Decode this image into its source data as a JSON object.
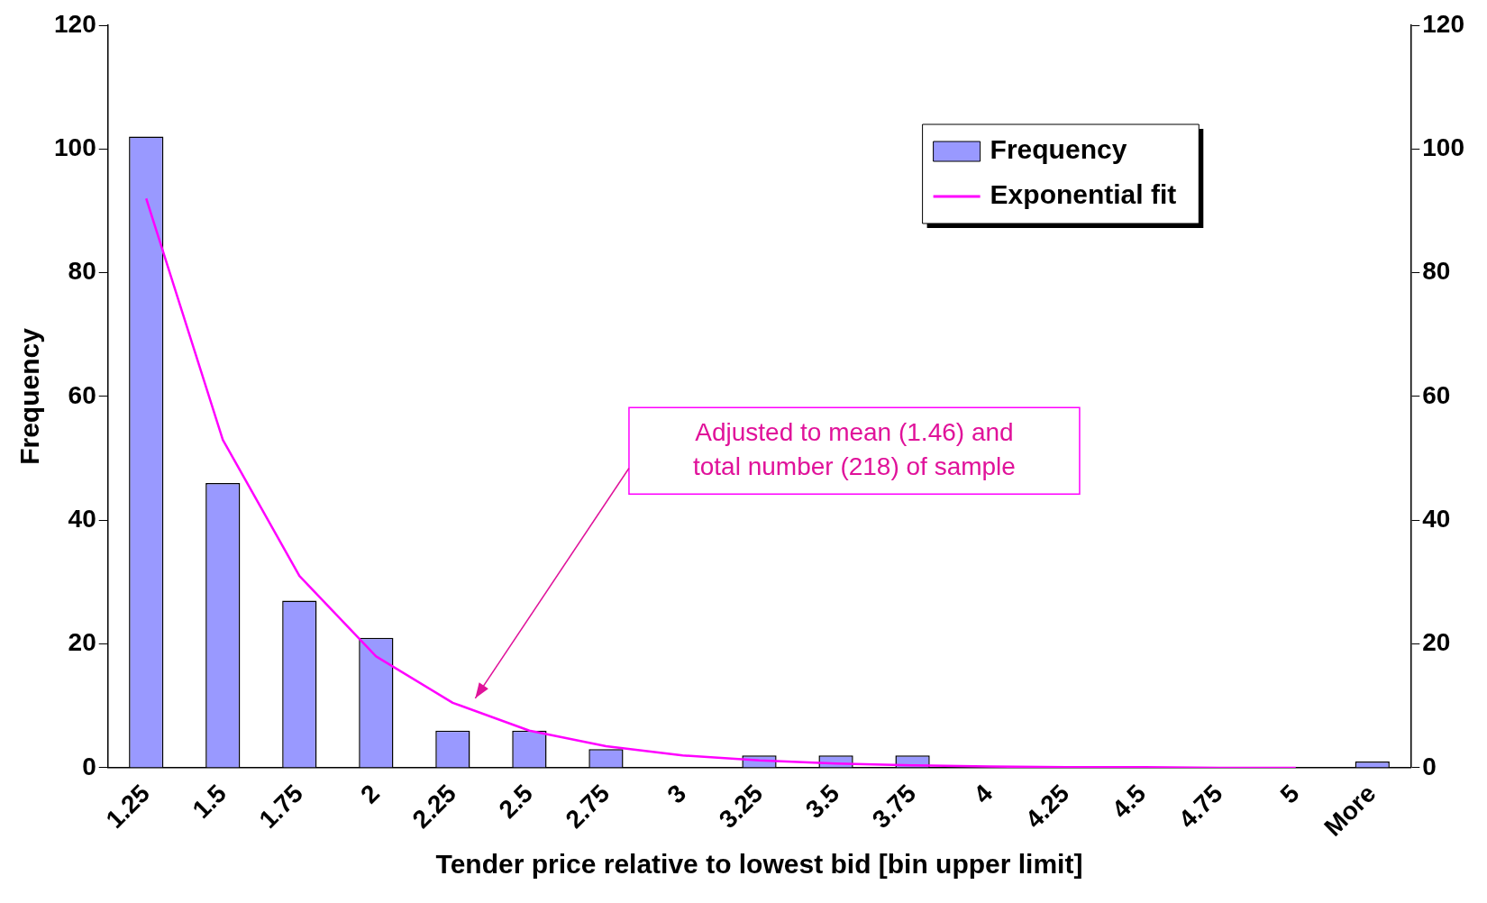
{
  "chart_data": {
    "type": "bar",
    "xlabel": "Tender price relative to lowest bid [bin upper limit]",
    "ylabel": "Frequency",
    "categories": [
      "1.25",
      "1.5",
      "1.75",
      "2",
      "2.25",
      "2.5",
      "2.75",
      "3",
      "3.25",
      "3.5",
      "3.75",
      "4",
      "4.25",
      "4.5",
      "4.75",
      "5",
      "More"
    ],
    "series": [
      {
        "name": "Frequency",
        "color": "#9999ff",
        "values": [
          102,
          46,
          27,
          21,
          6,
          6,
          3,
          0,
          2,
          2,
          2,
          0,
          0,
          0,
          0,
          0,
          1
        ]
      },
      {
        "name": "Exponential fit",
        "type": "line",
        "color": "#ff00ff",
        "values": [
          92,
          53,
          31,
          18,
          10.5,
          6,
          3.5,
          2,
          1.2,
          0.7,
          0.4,
          0.2,
          0.1,
          0.1,
          0,
          0,
          null
        ]
      }
    ],
    "ylim": [
      0,
      120
    ],
    "yticks": [
      0,
      20,
      40,
      60,
      80,
      100,
      120
    ],
    "y2lim": [
      0,
      120
    ],
    "y2ticks": [
      0,
      20,
      40,
      60,
      80,
      100,
      120
    ],
    "grid": false,
    "legend": "top right",
    "marker": "none",
    "annotations": [
      "Adjusted to mean (1.46) and total number (218) of sample"
    ]
  }
}
